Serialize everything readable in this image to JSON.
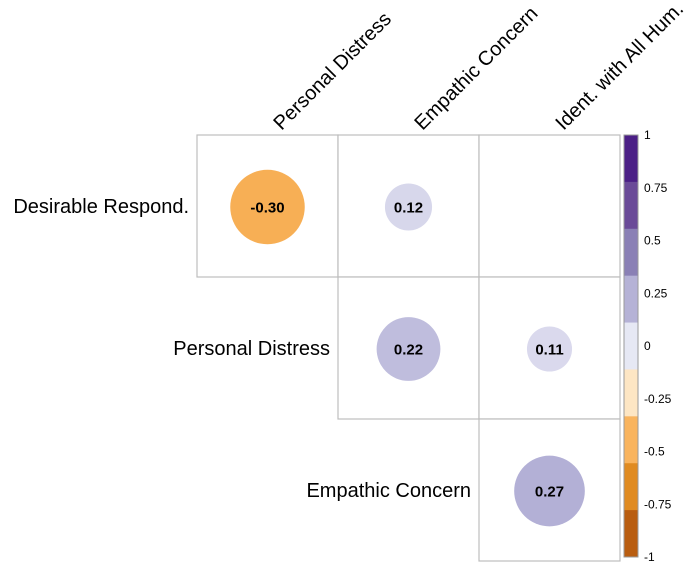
{
  "chart_data": {
    "type": "heatmap",
    "subtype": "correlation-circles-upper-triangle",
    "row_labels": [
      "Desirable Respond.",
      "Personal Distress",
      "Empathic Concern"
    ],
    "col_labels": [
      "Personal Distress",
      "Empathic Concern",
      "Ident. with All Hum."
    ],
    "cells": [
      {
        "row": 0,
        "col": 0,
        "value": -0.3,
        "label": "-0.30"
      },
      {
        "row": 0,
        "col": 1,
        "value": 0.12,
        "label": "0.12"
      },
      {
        "row": 0,
        "col": 2,
        "value": null,
        "label": ""
      },
      {
        "row": 1,
        "col": 1,
        "value": 0.22,
        "label": "0.22"
      },
      {
        "row": 1,
        "col": 2,
        "value": 0.11,
        "label": "0.11"
      },
      {
        "row": 2,
        "col": 2,
        "value": 0.27,
        "label": "0.27"
      }
    ],
    "colorbar": {
      "range": [
        -1,
        1
      ],
      "ticks": [
        1,
        0.75,
        0.5,
        0.25,
        0,
        -0.25,
        -0.5,
        -0.75,
        -1
      ],
      "tick_labels": [
        "1",
        "0.75",
        "0.5",
        "0.25",
        "0",
        "-0.25",
        "-0.5",
        "-0.75",
        "-1"
      ],
      "bins_top_to_bottom": [
        "#4b1f86",
        "#6a4a98",
        "#8a80b5",
        "#b5b2d6",
        "#e6e8f4",
        "#fde6c4",
        "#f9b45e",
        "#e08b21",
        "#b95d10"
      ]
    }
  }
}
